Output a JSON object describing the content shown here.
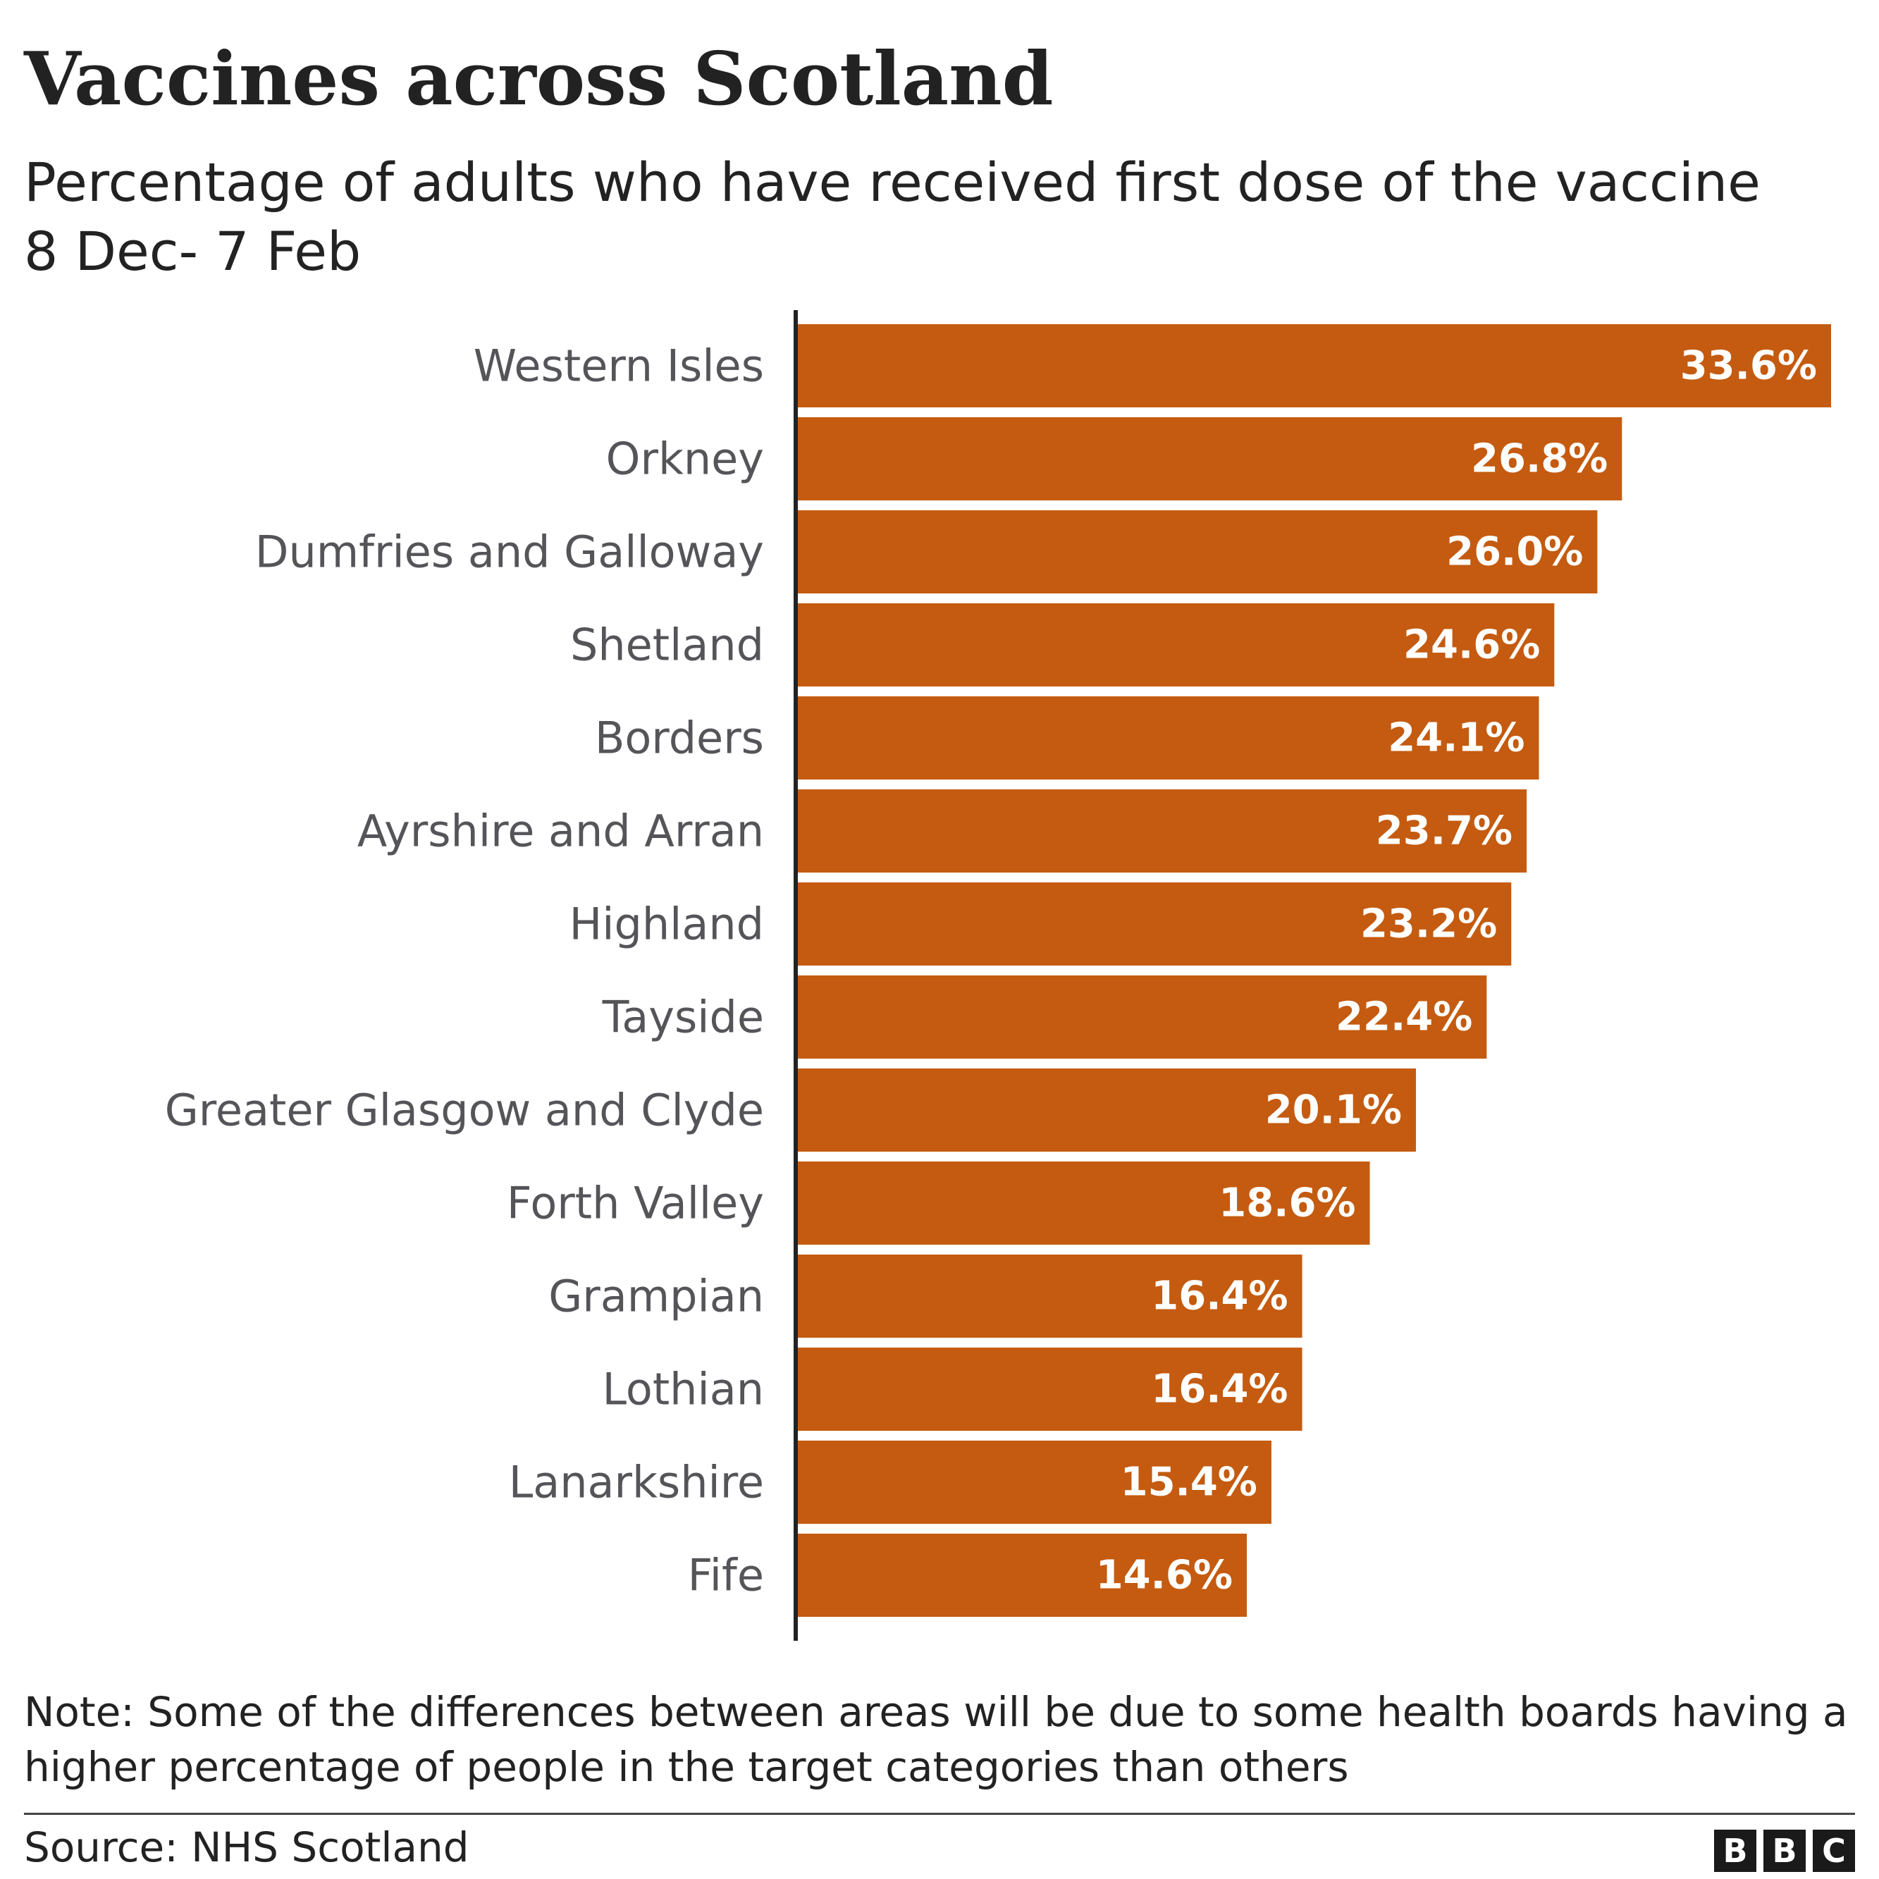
{
  "title": "Vaccines across Scotland",
  "subtitle": "Percentage of adults who have received first dose of the vaccine 8 Dec- 7 Feb",
  "note": "Note: Some of the differences between areas will be due to some health boards having a higher percentage of people in the target categories than others",
  "source": "Source: NHS Scotland",
  "logo": [
    "B",
    "B",
    "C"
  ],
  "colors": {
    "bar": "#c45b10",
    "label": "#555559",
    "axis": "#222222"
  },
  "chart_data": {
    "type": "bar",
    "orientation": "horizontal",
    "categories": [
      "Western Isles",
      "Orkney",
      "Dumfries and Galloway",
      "Shetland",
      "Borders",
      "Ayrshire and Arran",
      "Highland",
      "Tayside",
      "Greater Glasgow and Clyde",
      "Forth Valley",
      "Grampian",
      "Lothian",
      "Lanarkshire",
      "Fife"
    ],
    "values": [
      33.6,
      26.8,
      26.0,
      24.6,
      24.1,
      23.7,
      23.2,
      22.4,
      20.1,
      18.6,
      16.4,
      16.4,
      15.4,
      14.6
    ],
    "value_labels": [
      "33.6%",
      "26.8%",
      "26.0%",
      "24.6%",
      "24.1%",
      "23.7%",
      "23.2%",
      "22.4%",
      "20.1%",
      "18.6%",
      "16.4%",
      "16.4%",
      "15.4%",
      "14.6%"
    ],
    "unit": "%",
    "grid": false
  }
}
